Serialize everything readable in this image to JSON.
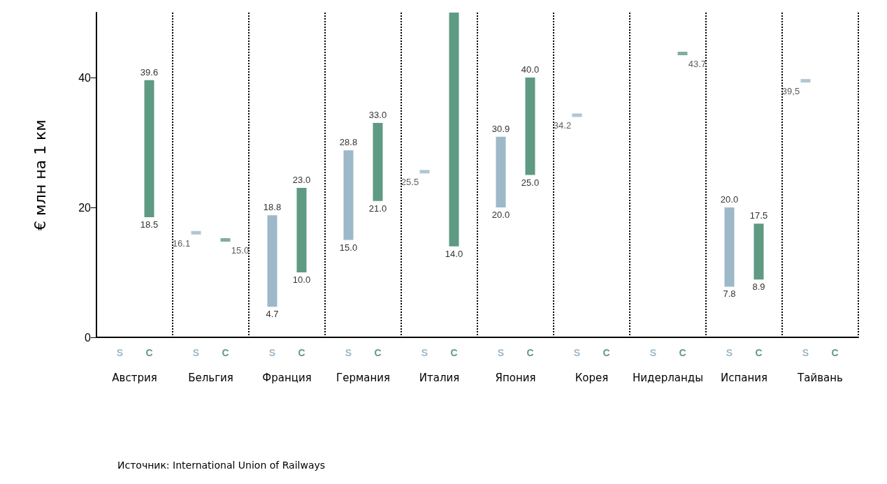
{
  "chart_data": {
    "type": "bar",
    "ylabel": "€ млн на 1 км",
    "categories": [
      "Австрия",
      "Бельгия",
      "Франция",
      "Германия",
      "Италия",
      "Япония",
      "Корея",
      "Нидерланды",
      "Испания",
      "Тайвань"
    ],
    "series": [
      {
        "name": "S",
        "color": "#9db8c8",
        "base": [
          null,
          null,
          4.7,
          15.0,
          null,
          20.0,
          null,
          null,
          7.8,
          null
        ],
        "values": [
          null,
          null,
          14.1,
          13.8,
          null,
          10.9,
          null,
          null,
          12.2,
          null
        ],
        "value_labels": [
          null,
          null,
          [
            "4.7",
            "18.8"
          ],
          [
            "15.0",
            "28.8"
          ],
          null,
          [
            "20.0",
            "30.9"
          ],
          null,
          null,
          [
            "7.8",
            "20.0"
          ],
          null
        ]
      },
      {
        "name": "C",
        "color": "#5f9a83",
        "base": [
          18.5,
          null,
          10.0,
          21.0,
          14.0,
          25.0,
          null,
          null,
          8.9,
          null
        ],
        "values": [
          21.1,
          null,
          13.0,
          12.0,
          36.0,
          15.0,
          null,
          null,
          8.6,
          null
        ],
        "value_labels": [
          [
            "18.5",
            "39.6"
          ],
          null,
          [
            "10.0",
            "23.0"
          ],
          [
            "21.0",
            "33.0"
          ],
          [
            "14.0",
            null
          ],
          [
            "25.0",
            "40.0"
          ],
          null,
          null,
          [
            "8.9",
            "17.5"
          ],
          null
        ]
      },
      {
        "type": "scatter",
        "color": "#9db8c8",
        "marker": "square",
        "x": [
          "Бельгия",
          "Италия",
          "Корея",
          "Тайвань"
        ],
        "values": [
          16.1,
          25.5,
          34.2,
          39.5
        ],
        "value_labels": [
          "16.1",
          "25.5",
          "34.2",
          "39,5"
        ]
      },
      {
        "type": "scatter",
        "color": "#5f9a83",
        "marker": "square",
        "x": [
          "Бельгия",
          "Нидерланды"
        ],
        "values": [
          15.0,
          43.7
        ],
        "value_labels": [
          "15.0",
          "43.7"
        ]
      }
    ],
    "ylim": [
      0,
      50
    ],
    "yticks": [
      0,
      20,
      40
    ],
    "grid": "x",
    "legend": false,
    "annotations": [
      "Источник: International Union of Railways"
    ]
  }
}
